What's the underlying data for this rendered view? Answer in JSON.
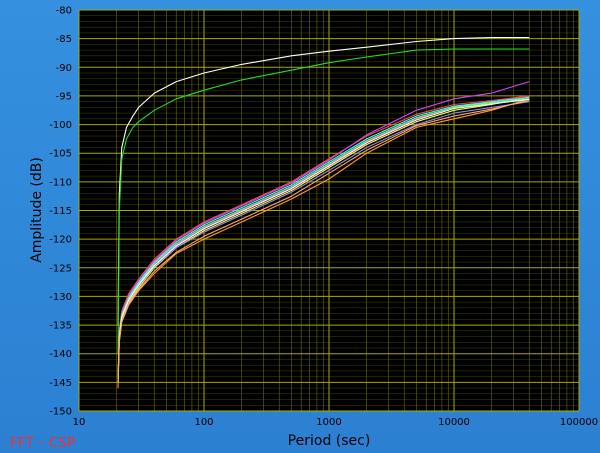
{
  "caption": "FFT - CSP",
  "chart_data": {
    "type": "line",
    "xlabel": "Period (sec)",
    "ylabel": "Amplitude (dB)",
    "xscale": "log",
    "xlim": [
      10,
      100000
    ],
    "ylim": [
      -150,
      -80
    ],
    "xticks": [
      10,
      100,
      1000,
      10000,
      100000
    ],
    "xtick_labels": [
      "10",
      "100",
      "1000",
      "10000",
      "100000"
    ],
    "yticks": [
      -80,
      -85,
      -90,
      -95,
      -100,
      -105,
      -110,
      -115,
      -120,
      -125,
      -130,
      -135,
      -140,
      -145,
      -150
    ],
    "ytick_labels": [
      "-80",
      "-85",
      "-90",
      "-95",
      "-100",
      "-105",
      "-110",
      "-115",
      "-120",
      "-125",
      "-130",
      "-135",
      "-140",
      "-145",
      "-150"
    ],
    "grid": true,
    "colors": {
      "plot_background": "#000000",
      "grid": "#7a7a00",
      "frame": "#2f86d6"
    },
    "series": [
      {
        "color": "#ffffff",
        "x": [
          20.5,
          21,
          22,
          24,
          27,
          30,
          40,
          60,
          100,
          200,
          500,
          1000,
          2000,
          5000,
          10000,
          20000,
          40000
        ],
        "y": [
          -135,
          -112,
          -104,
          -100.5,
          -98.5,
          -97,
          -94.5,
          -92.5,
          -91,
          -89.5,
          -88,
          -87.2,
          -86.5,
          -85.5,
          -85,
          -84.8,
          -84.8
        ]
      },
      {
        "color": "#22dd22",
        "x": [
          20.5,
          21,
          22,
          24,
          27,
          30,
          40,
          60,
          100,
          200,
          500,
          1000,
          2000,
          5000,
          10000,
          20000,
          40000
        ],
        "y": [
          -140,
          -115,
          -106,
          -102.5,
          -100.5,
          -99.5,
          -97.5,
          -95.5,
          -94,
          -92.2,
          -90.5,
          -89.2,
          -88.2,
          -87,
          -86.8,
          -86.8,
          -86.8
        ]
      },
      {
        "color": "#ff9933",
        "x": [
          20.5,
          21,
          22,
          25,
          30,
          40,
          60,
          100,
          200,
          500,
          1000,
          2000,
          5000,
          10000,
          20000,
          40000
        ],
        "y": [
          -146,
          -138,
          -134.5,
          -131.5,
          -129,
          -126,
          -122.5,
          -120,
          -117,
          -113,
          -109.5,
          -105,
          -100.5,
          -99,
          -97.5,
          -95.5
        ]
      },
      {
        "color": "#ff55ff",
        "x": [
          20.5,
          21,
          22,
          25,
          30,
          40,
          60,
          100,
          200,
          500,
          1000,
          2000,
          5000,
          10000,
          20000,
          40000
        ],
        "y": [
          -145,
          -137,
          -133.5,
          -130.5,
          -128,
          -124.5,
          -121,
          -118,
          -115,
          -111,
          -107,
          -103,
          -99,
          -97,
          -96,
          -95
        ]
      },
      {
        "color": "#ffff44",
        "x": [
          20.5,
          21,
          22,
          25,
          30,
          40,
          60,
          100,
          200,
          500,
          1000,
          2000,
          5000,
          10000,
          20000,
          40000
        ],
        "y": [
          -145,
          -137.5,
          -134,
          -131,
          -128.5,
          -125,
          -121.5,
          -118.5,
          -115.5,
          -111.5,
          -107.5,
          -103.5,
          -99.5,
          -97.5,
          -96.5,
          -95.2
        ]
      },
      {
        "color": "#33ffff",
        "x": [
          20.5,
          21,
          22,
          25,
          30,
          40,
          60,
          100,
          200,
          500,
          1000,
          2000,
          5000,
          10000,
          20000,
          40000
        ],
        "y": [
          -145,
          -136.5,
          -133,
          -130,
          -127.5,
          -124,
          -120.5,
          -117.5,
          -114.5,
          -110.5,
          -106.5,
          -102.5,
          -98.5,
          -96.8,
          -96,
          -95.3
        ]
      },
      {
        "color": "#ff4444",
        "x": [
          20.5,
          21,
          22,
          25,
          30,
          40,
          60,
          100,
          200,
          500,
          1000,
          2000,
          5000,
          10000,
          20000,
          40000
        ],
        "y": [
          -145,
          -136,
          -132.5,
          -129.5,
          -127,
          -123.5,
          -120,
          -117,
          -114,
          -110,
          -106,
          -102,
          -98.2,
          -96.5,
          -95.8,
          -95
        ]
      },
      {
        "color": "#8888ff",
        "x": [
          20.5,
          21,
          22,
          25,
          30,
          40,
          60,
          100,
          200,
          500,
          1000,
          2000,
          5000,
          10000,
          20000,
          40000
        ],
        "y": [
          -145,
          -137,
          -133.8,
          -130.8,
          -128.2,
          -124.8,
          -121.5,
          -118.8,
          -115.8,
          -111.8,
          -108,
          -104,
          -100,
          -98,
          -97,
          -96
        ]
      },
      {
        "color": "#cc44ff",
        "x": [
          20.5,
          21,
          22,
          25,
          30,
          40,
          60,
          100,
          200,
          500,
          1000,
          2000,
          5000,
          10000,
          20000,
          40000
        ],
        "y": [
          -145,
          -136,
          -132.8,
          -129.8,
          -127.2,
          -123.8,
          -120.2,
          -117.2,
          -114.2,
          -110.2,
          -106.2,
          -101.8,
          -97.5,
          -95.5,
          -94.5,
          -92.5
        ]
      },
      {
        "color": "#66ff66",
        "x": [
          20.5,
          21,
          22,
          25,
          30,
          40,
          60,
          100,
          200,
          500,
          1000,
          2000,
          5000,
          10000,
          20000,
          40000
        ],
        "y": [
          -145,
          -136.8,
          -133.2,
          -130.2,
          -127.8,
          -124.2,
          -120.8,
          -117.8,
          -114.8,
          -110.8,
          -106.8,
          -102.8,
          -98.8,
          -97,
          -96.2,
          -95.5
        ]
      },
      {
        "color": "#ffffff",
        "x": [
          20.5,
          21,
          22,
          25,
          30,
          40,
          60,
          100,
          200,
          500,
          1000,
          2000,
          5000,
          10000,
          20000,
          40000
        ],
        "y": [
          -145,
          -137.2,
          -133.6,
          -130.6,
          -128,
          -124.6,
          -121.2,
          -118.2,
          -115.2,
          -111.2,
          -107.2,
          -103.2,
          -99.2,
          -97.2,
          -96.4,
          -95.6
        ]
      },
      {
        "color": "#ffaa66",
        "x": [
          20.5,
          21,
          22,
          25,
          30,
          40,
          60,
          100,
          200,
          500,
          1000,
          2000,
          5000,
          10000,
          20000,
          40000
        ],
        "y": [
          -145,
          -137.8,
          -134.3,
          -131.3,
          -128.8,
          -125.6,
          -122.3,
          -119.5,
          -116.5,
          -112.5,
          -108.5,
          -104.5,
          -100.2,
          -98.5,
          -97.3,
          -95.8
        ]
      }
    ]
  }
}
